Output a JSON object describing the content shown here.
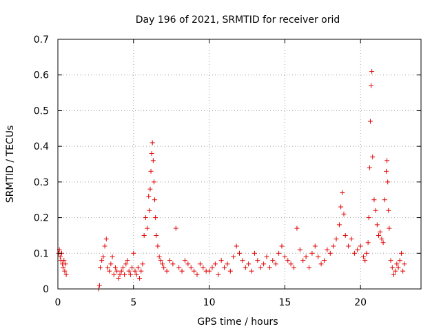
{
  "chart_data": {
    "type": "scatter",
    "title": "Day 196 of 2021, SRMTID for receiver orid",
    "xlabel": "GPS time / hours",
    "ylabel": "SRMTID / TECUs",
    "xlim": [
      0,
      24
    ],
    "ylim": [
      0,
      0.7
    ],
    "xticks": [
      0,
      5,
      10,
      15,
      20
    ],
    "xtick_labels": [
      "0",
      "5",
      "10",
      "15",
      "20"
    ],
    "yticks": [
      0,
      0.1,
      0.2,
      0.3,
      0.4,
      0.5,
      0.6,
      0.7
    ],
    "ytick_labels": [
      "0",
      "0.1",
      "0.2",
      "0.3",
      "0.4",
      "0.5",
      "0.6",
      "0.7"
    ],
    "grid": true,
    "marker": "+",
    "marker_color": "#e00000",
    "series": [
      {
        "name": "SRMTID",
        "x": [
          0.05,
          0.1,
          0.15,
          0.2,
          0.25,
          0.3,
          0.35,
          0.4,
          0.45,
          0.5,
          0.55,
          2.7,
          2.75,
          2.8,
          2.9,
          3.0,
          3.1,
          3.2,
          3.3,
          3.4,
          3.5,
          3.6,
          3.7,
          3.8,
          3.9,
          4.0,
          4.1,
          4.2,
          4.3,
          4.4,
          4.5,
          4.6,
          4.7,
          4.8,
          4.9,
          5.0,
          5.1,
          5.2,
          5.3,
          5.4,
          5.5,
          5.6,
          5.7,
          5.8,
          5.9,
          6.0,
          6.05,
          6.1,
          6.15,
          6.2,
          6.25,
          6.3,
          6.35,
          6.4,
          6.45,
          6.5,
          6.6,
          6.7,
          6.8,
          6.9,
          7.0,
          7.2,
          7.4,
          7.6,
          7.8,
          8.0,
          8.2,
          8.4,
          8.6,
          8.8,
          9.0,
          9.2,
          9.4,
          9.6,
          9.8,
          10.0,
          10.2,
          10.4,
          10.6,
          10.8,
          11.0,
          11.2,
          11.4,
          11.6,
          11.8,
          12.0,
          12.2,
          12.4,
          12.6,
          12.8,
          13.0,
          13.2,
          13.4,
          13.6,
          13.8,
          14.0,
          14.2,
          14.4,
          14.6,
          14.8,
          15.0,
          15.2,
          15.4,
          15.6,
          15.8,
          16.0,
          16.2,
          16.4,
          16.6,
          16.8,
          17.0,
          17.2,
          17.4,
          17.6,
          17.8,
          18.0,
          18.2,
          18.4,
          18.6,
          18.7,
          18.8,
          18.9,
          19.0,
          19.2,
          19.4,
          19.6,
          19.8,
          20.0,
          20.2,
          20.3,
          20.4,
          20.5,
          20.55,
          20.6,
          20.65,
          20.7,
          20.75,
          20.8,
          20.9,
          21.0,
          21.1,
          21.2,
          21.3,
          21.4,
          21.5,
          21.6,
          21.7,
          21.75,
          21.8,
          21.85,
          21.9,
          22.0,
          22.1,
          22.2,
          22.3,
          22.4,
          22.5,
          22.6,
          22.7,
          22.8,
          22.9
        ],
        "y": [
          0.1,
          0.11,
          0.09,
          0.08,
          0.1,
          0.07,
          0.06,
          0.08,
          0.05,
          0.07,
          0.04,
          0.0,
          0.01,
          0.06,
          0.08,
          0.09,
          0.12,
          0.14,
          0.06,
          0.05,
          0.07,
          0.09,
          0.04,
          0.06,
          0.05,
          0.03,
          0.04,
          0.05,
          0.06,
          0.04,
          0.07,
          0.08,
          0.05,
          0.04,
          0.06,
          0.1,
          0.05,
          0.04,
          0.06,
          0.03,
          0.05,
          0.07,
          0.15,
          0.2,
          0.17,
          0.26,
          0.22,
          0.28,
          0.33,
          0.38,
          0.41,
          0.36,
          0.3,
          0.25,
          0.2,
          0.15,
          0.12,
          0.09,
          0.08,
          0.07,
          0.06,
          0.05,
          0.08,
          0.07,
          0.17,
          0.06,
          0.05,
          0.08,
          0.07,
          0.06,
          0.05,
          0.04,
          0.07,
          0.06,
          0.05,
          0.05,
          0.06,
          0.07,
          0.04,
          0.08,
          0.06,
          0.07,
          0.05,
          0.09,
          0.12,
          0.1,
          0.08,
          0.06,
          0.07,
          0.05,
          0.1,
          0.08,
          0.06,
          0.07,
          0.09,
          0.06,
          0.08,
          0.07,
          0.1,
          0.12,
          0.09,
          0.08,
          0.07,
          0.06,
          0.17,
          0.11,
          0.08,
          0.09,
          0.06,
          0.1,
          0.12,
          0.09,
          0.07,
          0.08,
          0.11,
          0.1,
          0.12,
          0.14,
          0.18,
          0.23,
          0.27,
          0.21,
          0.15,
          0.12,
          0.14,
          0.1,
          0.11,
          0.12,
          0.09,
          0.08,
          0.1,
          0.13,
          0.2,
          0.34,
          0.47,
          0.57,
          0.61,
          0.37,
          0.25,
          0.22,
          0.18,
          0.15,
          0.16,
          0.14,
          0.13,
          0.25,
          0.33,
          0.36,
          0.3,
          0.22,
          0.17,
          0.08,
          0.06,
          0.04,
          0.05,
          0.07,
          0.06,
          0.08,
          0.1,
          0.05,
          0.07
        ]
      }
    ]
  }
}
